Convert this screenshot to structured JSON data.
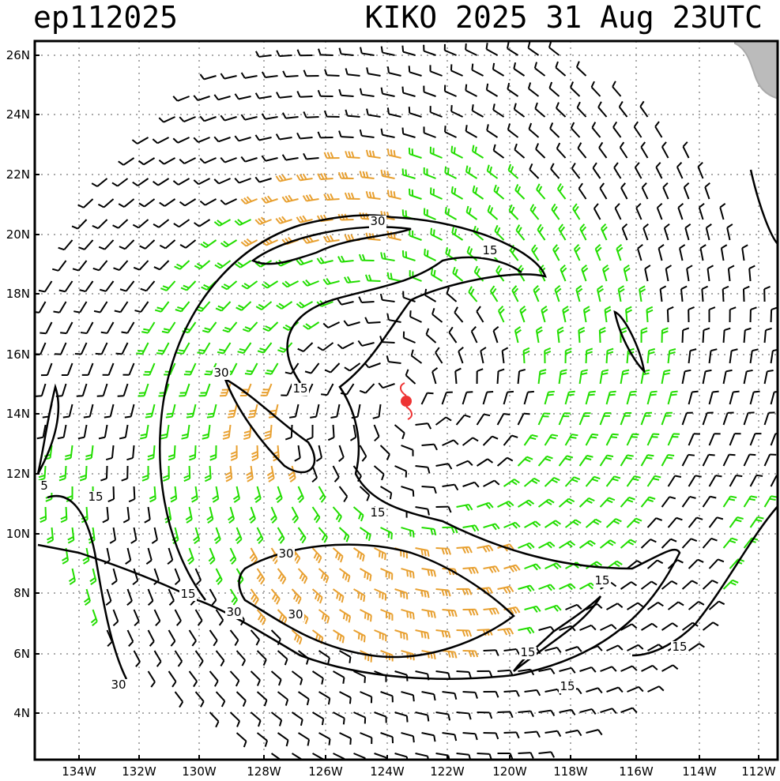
{
  "header": {
    "storm_id": "ep112025",
    "storm_label": "KIKO 2025 31 Aug 23UTC"
  },
  "lat_labels": [
    "4N",
    "6N",
    "8N",
    "10N",
    "12N",
    "14N",
    "16N",
    "18N",
    "20N",
    "22N",
    "24N",
    "26N"
  ],
  "lon_labels": [
    "134W",
    "132W",
    "130W",
    "128W",
    "126W",
    "124W",
    "122W",
    "120W",
    "118W",
    "116W",
    "114W",
    "112W"
  ],
  "contour_labels": [
    "5",
    "15",
    "15",
    "15",
    "15",
    "15",
    "15",
    "15",
    "15",
    "15",
    "30",
    "30",
    "30",
    "30",
    "30",
    "30"
  ],
  "colors": {
    "calm_barb": "#000000",
    "moderate_barb": "#22dd00",
    "strong_barb": "#e8a030",
    "contour": "#000000",
    "grid": "#aaaaaa",
    "storm_symbol": "#ee3333",
    "land": "#bbbbbb"
  },
  "storm_center": {
    "lat": 14.4,
    "lon": -123.1
  }
}
